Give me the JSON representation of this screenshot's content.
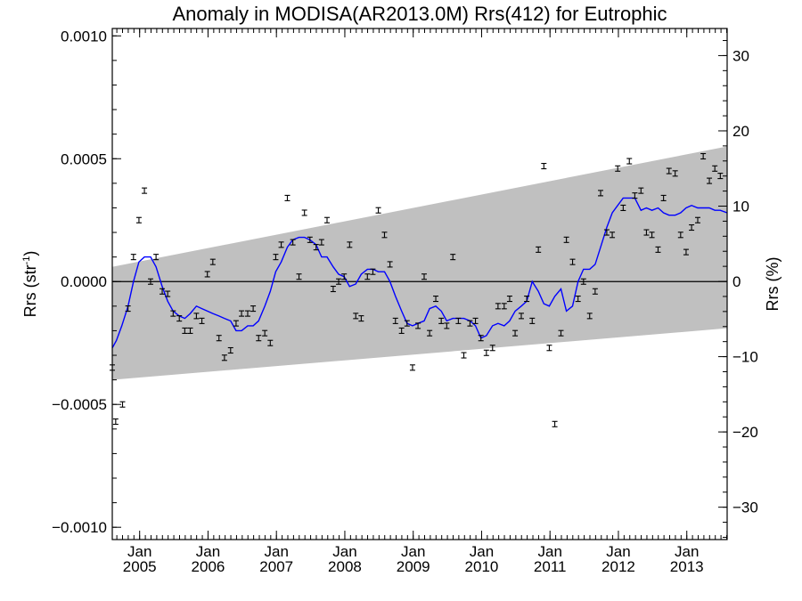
{
  "chart_data": {
    "type": "scatter",
    "title": "Anomaly in MODISA(AR2013.0M) Rrs(412) for Eutrophic",
    "ylabel_left": {
      "main": "Rrs (str",
      "sup": "-1",
      "end": ")"
    },
    "ylabel_right": "Rrs (%)",
    "ylim_left": [
      -0.00105,
      0.00103
    ],
    "ylim_right": [
      -34.3,
      33.6
    ],
    "xlim": [
      2004.6,
      2013.59
    ],
    "grid": false,
    "left_ticks": [
      {
        "value": 0.001,
        "label": "0.0010"
      },
      {
        "value": 0.0005,
        "label": "0.0005"
      },
      {
        "value": 0.0,
        "label": "0.0000"
      },
      {
        "value": -0.0005,
        "label": "−0.0005"
      },
      {
        "value": -0.001,
        "label": "−0.0010"
      }
    ],
    "right_ticks": [
      {
        "value": 30,
        "label": "30"
      },
      {
        "value": 20,
        "label": "20"
      },
      {
        "value": 10,
        "label": "10"
      },
      {
        "value": 0,
        "label": "0"
      },
      {
        "value": -10,
        "label": "−10"
      },
      {
        "value": -20,
        "label": "−20"
      },
      {
        "value": -30,
        "label": "−30"
      }
    ],
    "x_ticks": [
      {
        "value": 2005.0,
        "month": "Jan",
        "year": "2005"
      },
      {
        "value": 2006.0,
        "month": "Jan",
        "year": "2006"
      },
      {
        "value": 2007.0,
        "month": "Jan",
        "year": "2007"
      },
      {
        "value": 2008.0,
        "month": "Jan",
        "year": "2008"
      },
      {
        "value": 2009.0,
        "month": "Jan",
        "year": "2009"
      },
      {
        "value": 2010.0,
        "month": "Jan",
        "year": "2010"
      },
      {
        "value": 2011.0,
        "month": "Jan",
        "year": "2011"
      },
      {
        "value": 2012.0,
        "month": "Jan",
        "year": "2012"
      },
      {
        "value": 2013.0,
        "month": "Jan",
        "year": "2013"
      }
    ],
    "band": {
      "x": [
        2004.6,
        2013.59
      ],
      "upper": [
        6e-05,
        0.00055
      ],
      "lower": [
        -0.0004,
        -0.00019
      ],
      "color": "#c0c0c0"
    },
    "zero_line": 0.0,
    "colors": {
      "points": "#000000",
      "smooth": "#0000ff",
      "band": "#c0c0c0"
    },
    "series": [
      {
        "kind": "points",
        "points": [
          [
            2004.6,
            -0.00035
          ],
          [
            2004.65,
            -0.00057
          ],
          [
            2004.75,
            -0.0005
          ],
          [
            2004.83,
            -0.00011
          ],
          [
            2004.91,
            0.0001
          ],
          [
            2004.99,
            0.00025
          ],
          [
            2005.07,
            0.00037
          ],
          [
            2005.16,
            0.0
          ],
          [
            2005.24,
            0.0001
          ],
          [
            2005.33,
            -4e-05
          ],
          [
            2005.41,
            -5e-05
          ],
          [
            2005.49,
            -0.00013
          ],
          [
            2005.58,
            -0.00015
          ],
          [
            2005.66,
            -0.0002
          ],
          [
            2005.74,
            -0.0002
          ],
          [
            2005.83,
            -0.00014
          ],
          [
            2005.91,
            -0.00016
          ],
          [
            2005.99,
            3e-05
          ],
          [
            2006.07,
            8e-05
          ],
          [
            2006.16,
            -0.00023
          ],
          [
            2006.24,
            -0.00031
          ],
          [
            2006.33,
            -0.00028
          ],
          [
            2006.41,
            -0.00017
          ],
          [
            2006.49,
            -0.00013
          ],
          [
            2006.58,
            -0.00013
          ],
          [
            2006.66,
            -0.00011
          ],
          [
            2006.74,
            -0.00023
          ],
          [
            2006.83,
            -0.00021
          ],
          [
            2006.91,
            -0.00025
          ],
          [
            2006.99,
            0.0001
          ],
          [
            2007.07,
            0.00015
          ],
          [
            2007.16,
            0.00034
          ],
          [
            2007.24,
            0.00016
          ],
          [
            2007.33,
            2e-05
          ],
          [
            2007.41,
            0.00028
          ],
          [
            2007.49,
            0.00017
          ],
          [
            2007.58,
            0.00014
          ],
          [
            2007.66,
            0.00016
          ],
          [
            2007.74,
            0.00025
          ],
          [
            2007.83,
            -3e-05
          ],
          [
            2007.91,
            0.0
          ],
          [
            2007.99,
            2e-05
          ],
          [
            2008.07,
            0.00015
          ],
          [
            2008.16,
            -0.00014
          ],
          [
            2008.24,
            -0.00015
          ],
          [
            2008.33,
            2e-05
          ],
          [
            2008.41,
            4e-05
          ],
          [
            2008.49,
            0.00029
          ],
          [
            2008.58,
            0.00019
          ],
          [
            2008.66,
            7e-05
          ],
          [
            2008.74,
            -0.00016
          ],
          [
            2008.83,
            -0.0002
          ],
          [
            2008.91,
            -0.00017
          ],
          [
            2008.99,
            -0.00035
          ],
          [
            2009.07,
            -0.00018
          ],
          [
            2009.16,
            2e-05
          ],
          [
            2009.24,
            -0.00021
          ],
          [
            2009.33,
            -7e-05
          ],
          [
            2009.41,
            -0.00016
          ],
          [
            2009.49,
            -0.00018
          ],
          [
            2009.58,
            0.0001
          ],
          [
            2009.66,
            -0.00016
          ],
          [
            2009.74,
            -0.0003
          ],
          [
            2009.83,
            -0.00017
          ],
          [
            2009.91,
            -0.00016
          ],
          [
            2009.99,
            -0.00023
          ],
          [
            2010.07,
            -0.00029
          ],
          [
            2010.16,
            -0.00027
          ],
          [
            2010.24,
            -0.0001
          ],
          [
            2010.33,
            -0.0001
          ],
          [
            2010.41,
            -7e-05
          ],
          [
            2010.49,
            -0.00021
          ],
          [
            2010.58,
            -0.00014
          ],
          [
            2010.66,
            -7e-05
          ],
          [
            2010.74,
            -0.00016
          ],
          [
            2010.83,
            0.00013
          ],
          [
            2010.91,
            0.00047
          ],
          [
            2010.99,
            -0.00027
          ],
          [
            2011.07,
            -0.00058
          ],
          [
            2011.16,
            -0.00021
          ],
          [
            2011.24,
            0.00017
          ],
          [
            2011.33,
            8e-05
          ],
          [
            2011.41,
            -7e-05
          ],
          [
            2011.49,
            0.0
          ],
          [
            2011.58,
            -0.00014
          ],
          [
            2011.66,
            -4e-05
          ],
          [
            2011.74,
            0.00036
          ],
          [
            2011.83,
            0.0002
          ],
          [
            2011.91,
            0.00019
          ],
          [
            2011.99,
            0.00046
          ],
          [
            2012.07,
            0.0003
          ],
          [
            2012.16,
            0.00049
          ],
          [
            2012.24,
            0.00035
          ],
          [
            2012.33,
            0.00037
          ],
          [
            2012.41,
            0.0002
          ],
          [
            2012.49,
            0.00019
          ],
          [
            2012.58,
            0.00013
          ],
          [
            2012.66,
            0.00034
          ],
          [
            2012.74,
            0.00045
          ],
          [
            2012.83,
            0.00044
          ],
          [
            2012.91,
            0.00019
          ],
          [
            2012.99,
            0.00012
          ],
          [
            2013.07,
            0.00022
          ],
          [
            2013.16,
            0.00025
          ],
          [
            2013.24,
            0.00051
          ],
          [
            2013.33,
            0.00041
          ],
          [
            2013.41,
            0.00046
          ],
          [
            2013.49,
            0.00043
          ]
        ]
      },
      {
        "kind": "smooth",
        "points": [
          [
            2004.6,
            -0.00027
          ],
          [
            2004.66,
            -0.00024
          ],
          [
            2004.74,
            -0.00018
          ],
          [
            2004.83,
            -0.0001
          ],
          [
            2004.91,
            0.0
          ],
          [
            2004.99,
            8e-05
          ],
          [
            2005.07,
            0.0001
          ],
          [
            2005.16,
            0.0001
          ],
          [
            2005.24,
            6e-05
          ],
          [
            2005.33,
            -2e-05
          ],
          [
            2005.41,
            -8e-05
          ],
          [
            2005.49,
            -0.00012
          ],
          [
            2005.58,
            -0.00014
          ],
          [
            2005.66,
            -0.00015
          ],
          [
            2005.74,
            -0.00013
          ],
          [
            2005.83,
            -0.0001
          ],
          [
            2005.91,
            -0.00011
          ],
          [
            2005.99,
            -0.00012
          ],
          [
            2006.07,
            -0.00013
          ],
          [
            2006.16,
            -0.00014
          ],
          [
            2006.24,
            -0.00015
          ],
          [
            2006.33,
            -0.00016
          ],
          [
            2006.41,
            -0.0002
          ],
          [
            2006.49,
            -0.0002
          ],
          [
            2006.58,
            -0.00018
          ],
          [
            2006.66,
            -0.00018
          ],
          [
            2006.74,
            -0.00016
          ],
          [
            2006.83,
            -0.0001
          ],
          [
            2006.91,
            -4e-05
          ],
          [
            2006.99,
            4e-05
          ],
          [
            2007.07,
            8e-05
          ],
          [
            2007.16,
            0.00014
          ],
          [
            2007.24,
            0.00017
          ],
          [
            2007.33,
            0.00018
          ],
          [
            2007.41,
            0.00018
          ],
          [
            2007.49,
            0.00017
          ],
          [
            2007.58,
            0.00015
          ],
          [
            2007.66,
            0.0001
          ],
          [
            2007.74,
            0.0001
          ],
          [
            2007.83,
            6e-05
          ],
          [
            2007.91,
            3e-05
          ],
          [
            2007.99,
            2e-05
          ],
          [
            2008.07,
            -2e-05
          ],
          [
            2008.16,
            -1e-05
          ],
          [
            2008.24,
            3e-05
          ],
          [
            2008.33,
            5e-05
          ],
          [
            2008.41,
            5e-05
          ],
          [
            2008.49,
            4e-05
          ],
          [
            2008.58,
            4e-05
          ],
          [
            2008.66,
            0.0
          ],
          [
            2008.74,
            -6e-05
          ],
          [
            2008.83,
            -0.00012
          ],
          [
            2008.91,
            -0.00017
          ],
          [
            2008.99,
            -0.00018
          ],
          [
            2009.07,
            -0.00017
          ],
          [
            2009.16,
            -0.00016
          ],
          [
            2009.24,
            -0.00011
          ],
          [
            2009.33,
            -0.0001
          ],
          [
            2009.41,
            -0.00012
          ],
          [
            2009.49,
            -0.00016
          ],
          [
            2009.58,
            -0.00015
          ],
          [
            2009.66,
            -0.00015
          ],
          [
            2009.74,
            -0.00015
          ],
          [
            2009.83,
            -0.00016
          ],
          [
            2009.91,
            -0.00018
          ],
          [
            2009.99,
            -0.00023
          ],
          [
            2010.07,
            -0.00022
          ],
          [
            2010.16,
            -0.00018
          ],
          [
            2010.24,
            -0.00017
          ],
          [
            2010.33,
            -0.00018
          ],
          [
            2010.41,
            -0.00016
          ],
          [
            2010.49,
            -0.00012
          ],
          [
            2010.58,
            -0.0001
          ],
          [
            2010.66,
            -8e-05
          ],
          [
            2010.74,
            0.0
          ],
          [
            2010.83,
            -4e-05
          ],
          [
            2010.91,
            -9e-05
          ],
          [
            2010.99,
            -0.0001
          ],
          [
            2011.07,
            -6e-05
          ],
          [
            2011.16,
            -3e-05
          ],
          [
            2011.24,
            -0.00012
          ],
          [
            2011.33,
            -0.0001
          ],
          [
            2011.41,
            0.0
          ],
          [
            2011.49,
            5e-05
          ],
          [
            2011.58,
            5e-05
          ],
          [
            2011.66,
            7e-05
          ],
          [
            2011.74,
            0.00014
          ],
          [
            2011.83,
            0.00022
          ],
          [
            2011.91,
            0.00028
          ],
          [
            2011.99,
            0.00031
          ],
          [
            2012.07,
            0.00034
          ],
          [
            2012.16,
            0.00034
          ],
          [
            2012.24,
            0.00034
          ],
          [
            2012.33,
            0.00029
          ],
          [
            2012.41,
            0.0003
          ],
          [
            2012.49,
            0.00029
          ],
          [
            2012.58,
            0.0003
          ],
          [
            2012.66,
            0.00028
          ],
          [
            2012.74,
            0.00027
          ],
          [
            2012.83,
            0.00027
          ],
          [
            2012.91,
            0.00028
          ],
          [
            2012.99,
            0.0003
          ],
          [
            2013.07,
            0.00031
          ],
          [
            2013.16,
            0.0003
          ],
          [
            2013.24,
            0.0003
          ],
          [
            2013.33,
            0.0003
          ],
          [
            2013.41,
            0.00029
          ],
          [
            2013.49,
            0.00029
          ],
          [
            2013.59,
            0.00028
          ]
        ]
      }
    ]
  }
}
